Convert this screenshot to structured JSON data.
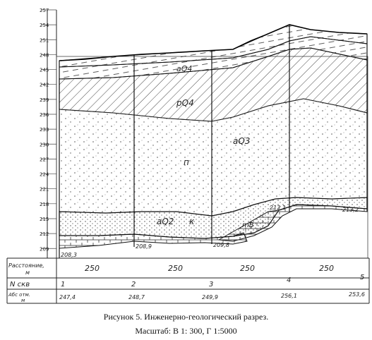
{
  "diagram": {
    "elevation_scale": [
      "257",
      "254",
      "251",
      "248",
      "245",
      "242",
      "239",
      "236",
      "233",
      "230",
      "227",
      "224",
      "221",
      "218",
      "215",
      "212",
      "209"
    ],
    "layers": {
      "aQ4": "aQ4",
      "pQ4": "pQ4",
      "aQ3": "aQ3",
      "p": "п",
      "aQ2": "aQ2",
      "k": "к",
      "mB": "mB"
    },
    "water_levels": [
      "208,3",
      "208,9",
      "209,8",
      "213,1",
      "213,2"
    ],
    "table": {
      "distance_label": [
        "Расстояние,",
        "м"
      ],
      "distances": [
        "250",
        "250",
        "250",
        "250"
      ],
      "well_label": "N скв",
      "wells": [
        "1",
        "2",
        "3",
        "4",
        "5"
      ],
      "abs_label": [
        "Абс отм.",
        "м"
      ],
      "abs_values": [
        "247,4",
        "248,7",
        "249,9",
        "256,1",
        "253,6"
      ]
    }
  },
  "caption": {
    "title": "Рисунок 5. Инженерно-геологический  разрез.",
    "scale": "Масштаб: В 1: 300, Г 1:5000"
  }
}
